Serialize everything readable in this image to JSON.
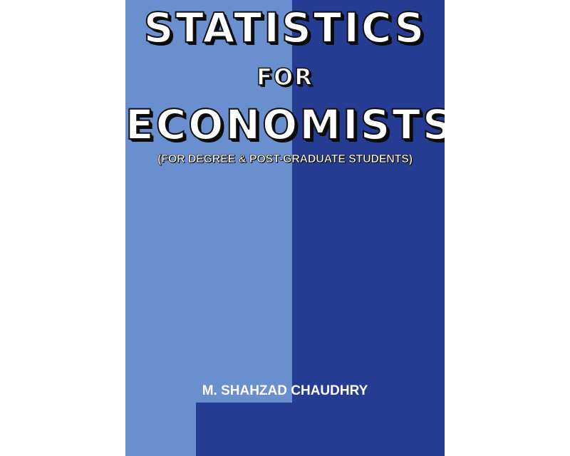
{
  "cover": {
    "title_line1": "STATISTICS",
    "title_line2": "FOR",
    "title_line3": "ECONOMISTS",
    "subtitle": "(FOR DEGREE & POST-GRADUATE STUDENTS)",
    "author": "M. SHAHZAD CHAUDHRY"
  },
  "colors": {
    "light_blue": "#6a8fcf",
    "dark_blue": "#263b92",
    "text": "#ffffff",
    "outline": "#111111"
  }
}
